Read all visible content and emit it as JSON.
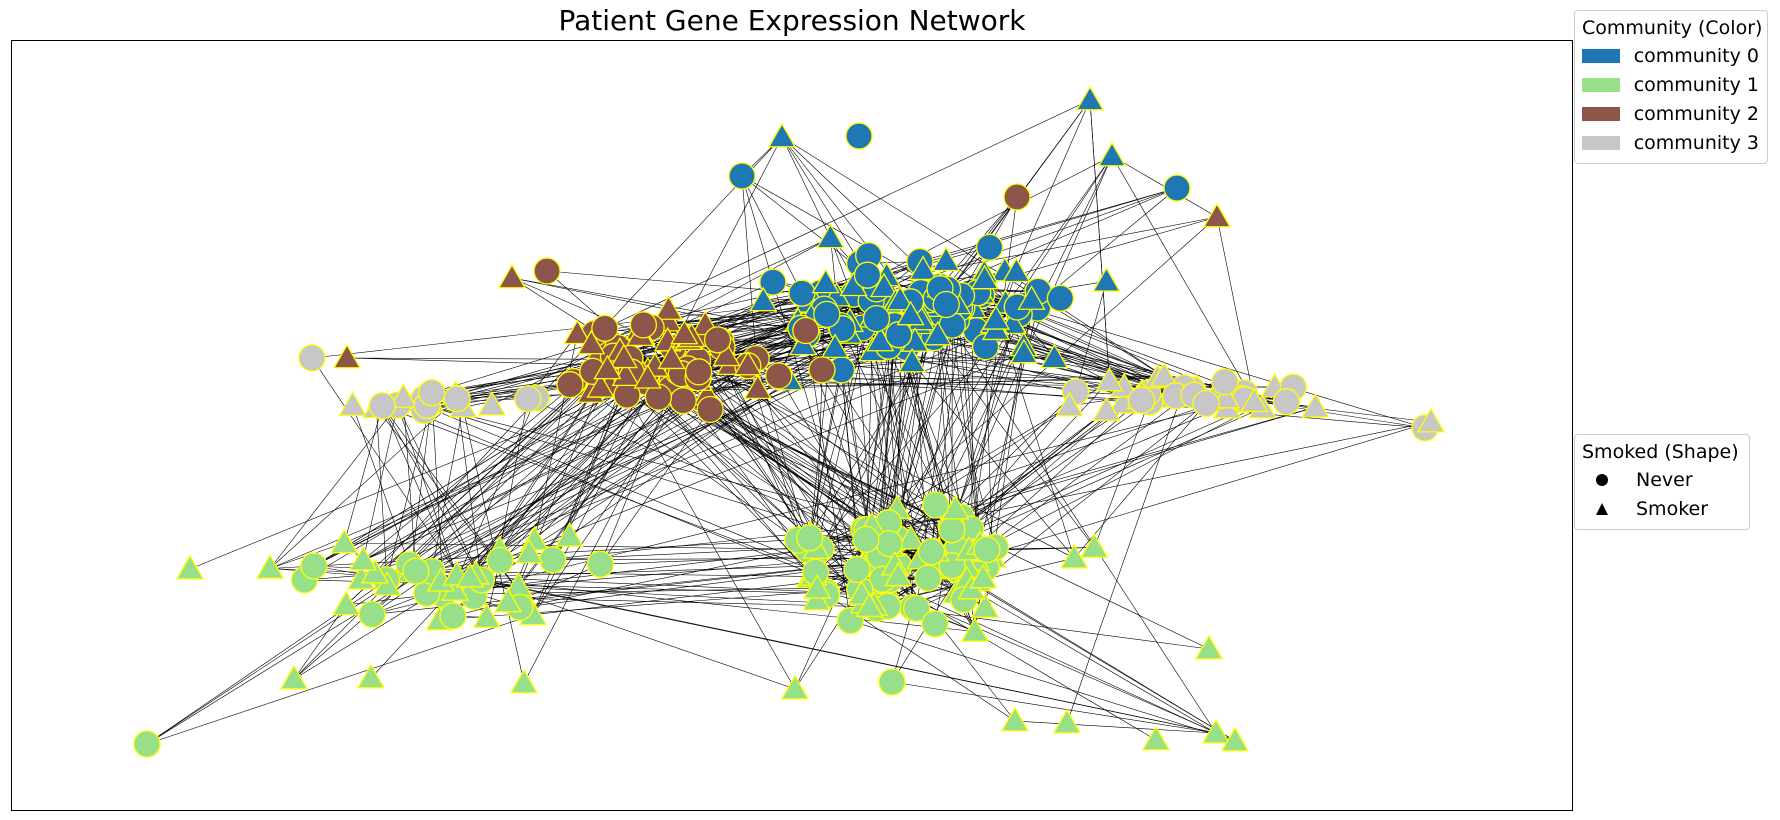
{
  "title": "Patient Gene Expression Network",
  "legend_community": {
    "title": "Community (Color)",
    "items": [
      {
        "label": "community 0",
        "color": "#1f77b4"
      },
      {
        "label": "community 1",
        "color": "#98df8a"
      },
      {
        "label": "community 2",
        "color": "#8c564b"
      },
      {
        "label": "community 3",
        "color": "#c7c7c7"
      }
    ]
  },
  "legend_shape": {
    "title": "Smoked (Shape)",
    "items": [
      {
        "label": "Never",
        "shape": "circle-icon"
      },
      {
        "label": "Smoker",
        "shape": "triangle-icon"
      }
    ]
  },
  "style": {
    "node_outline": "#ffff00",
    "edge_color": "#000000",
    "frame_color": "#000000"
  }
}
